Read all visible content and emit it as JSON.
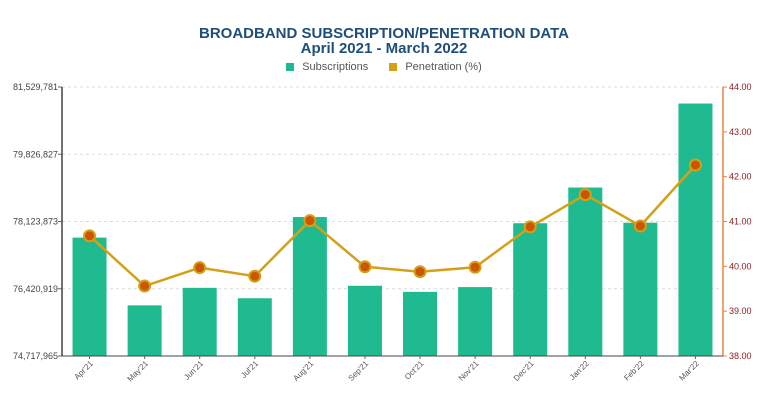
{
  "chart_data": {
    "type": "bar+line",
    "title": "BROADBAND SUBSCRIPTION/PENETRATION DATA",
    "subtitle": "April 2021 - March 2022",
    "categories": [
      "Apr'21",
      "May'21",
      "Jun'21",
      "Jul'21",
      "Aug'21",
      "Sep'21",
      "Oct'21",
      "Nov'21",
      "Dec'21",
      "Jan'22",
      "Feb'22",
      "Mar'22"
    ],
    "series": [
      {
        "name": "Subscriptions",
        "type": "bar",
        "axis": "left",
        "color": "#1fba90",
        "values": [
          77716000,
          76000000,
          76444000,
          76180000,
          78237000,
          76497000,
          76342000,
          76463000,
          78080000,
          78984000,
          78093000,
          81111000
        ]
      },
      {
        "name": "Penetration (%)",
        "type": "line",
        "axis": "right",
        "color": "#d4a017",
        "marker_color": "#cc5500",
        "values": [
          40.68,
          39.56,
          39.97,
          39.78,
          41.02,
          39.99,
          39.88,
          39.98,
          40.88,
          41.6,
          40.9,
          42.26
        ]
      }
    ],
    "y_left": {
      "ticks": [
        "74,717,965",
        "76,420,919",
        "78,123,873",
        "79,826,827",
        "81,529,781"
      ],
      "min": 74717965,
      "max": 81529781
    },
    "y_right": {
      "ticks": [
        "38.00",
        "39.00",
        "40.00",
        "41.00",
        "42.00",
        "43.00",
        "44.00"
      ],
      "min": 38,
      "max": 44,
      "color": "#e8864a"
    },
    "legend": "top-center",
    "grid": true
  }
}
